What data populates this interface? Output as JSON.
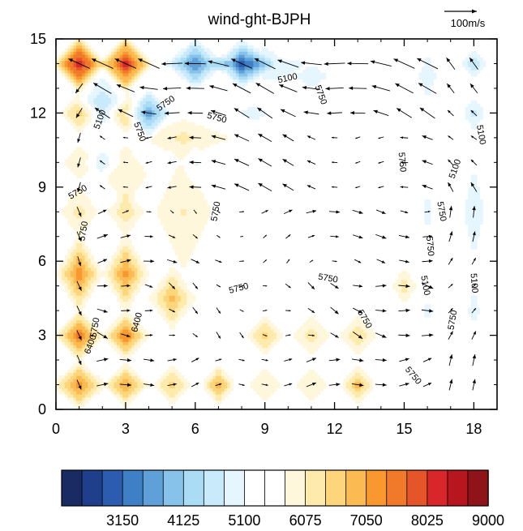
{
  "chart_data": {
    "type": "heatmap",
    "title": "wind-ght-BJPH",
    "xlabel": "",
    "ylabel": "",
    "xlim": [
      0,
      19
    ],
    "ylim": [
      0,
      15
    ],
    "xticks": [
      0,
      3,
      6,
      9,
      12,
      15,
      18
    ],
    "yticks": [
      0,
      3,
      6,
      9,
      12,
      15
    ],
    "reference_vector": {
      "label": "100m/s"
    },
    "colorbar": {
      "colors": [
        "#1a2b64",
        "#1f3f8c",
        "#2b5cb0",
        "#3f7fc6",
        "#5fa0d8",
        "#87c2ea",
        "#aadcf6",
        "#c8eafb",
        "#e6f6fe",
        "#ffffff",
        "#ffffff",
        "#fff7dc",
        "#feeaaa",
        "#fdd57a",
        "#fbbb52",
        "#f8982f",
        "#f07a2a",
        "#e6542a",
        "#d8262a",
        "#b8161f",
        "#8f141a"
      ],
      "labels": [
        "3150",
        "4125",
        "5100",
        "6075",
        "7050",
        "8025",
        "9000"
      ]
    },
    "contour_labels": [
      {
        "text": "5100",
        "x": 10,
        "y": 13.3
      },
      {
        "text": "5750",
        "x": 11.3,
        "y": 12.7
      },
      {
        "text": "5750",
        "x": 4.8,
        "y": 12.3
      },
      {
        "text": "5750",
        "x": 6.9,
        "y": 11.7
      },
      {
        "text": "5100",
        "x": 2.0,
        "y": 11.7
      },
      {
        "text": "5750",
        "x": 3.5,
        "y": 11.2
      },
      {
        "text": "5100",
        "x": 18.2,
        "y": 11.1
      },
      {
        "text": "5750",
        "x": 14.8,
        "y": 10.0
      },
      {
        "text": "5100",
        "x": 17.3,
        "y": 9.7
      },
      {
        "text": "5750",
        "x": 1.0,
        "y": 8.7
      },
      {
        "text": "5750",
        "x": 7.0,
        "y": 8.0
      },
      {
        "text": "5750",
        "x": 16.5,
        "y": 8.0
      },
      {
        "text": "5750",
        "x": 1.3,
        "y": 7.2
      },
      {
        "text": "5750",
        "x": 16.0,
        "y": 6.6
      },
      {
        "text": "5750",
        "x": 11.7,
        "y": 5.2
      },
      {
        "text": "5750",
        "x": 7.9,
        "y": 4.8
      },
      {
        "text": "5100",
        "x": 15.8,
        "y": 5.0
      },
      {
        "text": "5100",
        "x": 17.9,
        "y": 5.1
      },
      {
        "text": "6400",
        "x": 3.6,
        "y": 3.5
      },
      {
        "text": "5750",
        "x": 13.2,
        "y": 3.6
      },
      {
        "text": "5750",
        "x": 17.2,
        "y": 3.6
      },
      {
        "text": "5750",
        "x": 1.8,
        "y": 3.3
      },
      {
        "text": "6400",
        "x": 1.6,
        "y": 2.6
      },
      {
        "text": "5750",
        "x": 15.3,
        "y": 1.3
      }
    ],
    "blobs": [
      {
        "x": 1,
        "y": 14,
        "v": 9.0,
        "sx": 0.8,
        "sy": 0.8
      },
      {
        "x": 3,
        "y": 14,
        "v": 8.5,
        "sx": 0.8,
        "sy": 0.8
      },
      {
        "x": 6,
        "y": 14,
        "v": -7.0,
        "sx": 1.0,
        "sy": 0.8
      },
      {
        "x": 8,
        "y": 14,
        "v": -7.0,
        "sx": 0.9,
        "sy": 0.8
      },
      {
        "x": 9,
        "y": 14,
        "v": -3.0,
        "sx": 1.2,
        "sy": 0.8
      },
      {
        "x": 11,
        "y": 13.5,
        "v": -2.0,
        "sx": 1.4,
        "sy": 1.0
      },
      {
        "x": 4,
        "y": 12,
        "v": -6.0,
        "sx": 0.8,
        "sy": 0.8
      },
      {
        "x": 2,
        "y": 12.5,
        "v": -3.5,
        "sx": 0.8,
        "sy": 1.0
      },
      {
        "x": 1,
        "y": 12,
        "v": 3.0,
        "sx": 0.6,
        "sy": 0.6
      },
      {
        "x": 3,
        "y": 12,
        "v": 3.0,
        "sx": 0.6,
        "sy": 0.6
      },
      {
        "x": 5.5,
        "y": 11,
        "v": 1.8,
        "sx": 1.6,
        "sy": 0.6
      },
      {
        "x": 8.5,
        "y": 12,
        "v": -2.0,
        "sx": 1.4,
        "sy": 0.7
      },
      {
        "x": 2,
        "y": 10,
        "v": -2.5,
        "sx": 0.6,
        "sy": 0.6
      },
      {
        "x": 1,
        "y": 10,
        "v": 1.5,
        "sx": 0.6,
        "sy": 0.6
      },
      {
        "x": 3,
        "y": 9.5,
        "v": 1.5,
        "sx": 0.8,
        "sy": 1.0
      },
      {
        "x": 5.5,
        "y": 8,
        "v": 1.5,
        "sx": 1.0,
        "sy": 2.0
      },
      {
        "x": 7,
        "y": 9.5,
        "v": -1.5,
        "sx": 1.2,
        "sy": 0.8
      },
      {
        "x": 10,
        "y": 10,
        "v": -1.2,
        "sx": 0.8,
        "sy": 0.8
      },
      {
        "x": 1,
        "y": 8,
        "v": 2.0,
        "sx": 0.6,
        "sy": 0.8
      },
      {
        "x": 3,
        "y": 8,
        "v": 2.5,
        "sx": 0.6,
        "sy": 0.7
      },
      {
        "x": 1,
        "y": 5.5,
        "v": 5.5,
        "sx": 0.7,
        "sy": 1.1
      },
      {
        "x": 3,
        "y": 5.5,
        "v": 5.0,
        "sx": 0.7,
        "sy": 1.1
      },
      {
        "x": 5,
        "y": 4.5,
        "v": 4.0,
        "sx": 0.7,
        "sy": 0.9
      },
      {
        "x": 1,
        "y": 3,
        "v": 6.5,
        "sx": 0.7,
        "sy": 0.7
      },
      {
        "x": 3,
        "y": 3,
        "v": 6.0,
        "sx": 0.7,
        "sy": 0.7
      },
      {
        "x": 1,
        "y": 1,
        "v": 5.5,
        "sx": 0.8,
        "sy": 0.7
      },
      {
        "x": 3,
        "y": 1,
        "v": 5.0,
        "sx": 0.7,
        "sy": 0.6
      },
      {
        "x": 5,
        "y": 1,
        "v": 3.0,
        "sx": 0.6,
        "sy": 0.6
      },
      {
        "x": 7,
        "y": 1,
        "v": 4.5,
        "sx": 0.5,
        "sy": 0.6
      },
      {
        "x": 9,
        "y": 3,
        "v": 3.0,
        "sx": 0.6,
        "sy": 0.6
      },
      {
        "x": 11,
        "y": 3,
        "v": 2.0,
        "sx": 0.6,
        "sy": 0.6
      },
      {
        "x": 13,
        "y": 3,
        "v": 2.5,
        "sx": 0.6,
        "sy": 0.6
      },
      {
        "x": 13,
        "y": 1,
        "v": 4.0,
        "sx": 0.5,
        "sy": 0.6
      },
      {
        "x": 11,
        "y": 1,
        "v": 1.5,
        "sx": 0.6,
        "sy": 0.6
      },
      {
        "x": 9,
        "y": 1,
        "v": 1.5,
        "sx": 0.6,
        "sy": 0.6
      },
      {
        "x": 15,
        "y": 5,
        "v": 2.0,
        "sx": 0.4,
        "sy": 0.6
      },
      {
        "x": 16,
        "y": 8,
        "v": -1.8,
        "sx": 0.5,
        "sy": 2.2
      },
      {
        "x": 16,
        "y": 4,
        "v": -1.8,
        "sx": 0.5,
        "sy": 1.0
      },
      {
        "x": 16,
        "y": 13.5,
        "v": -2.5,
        "sx": 0.5,
        "sy": 1.2
      },
      {
        "x": 18,
        "y": 14,
        "v": -3.5,
        "sx": 0.6,
        "sy": 0.6
      },
      {
        "x": 18,
        "y": 12,
        "v": -2.8,
        "sx": 0.6,
        "sy": 0.8
      },
      {
        "x": 18,
        "y": 8,
        "v": -2.5,
        "sx": 0.6,
        "sy": 2.5
      },
      {
        "x": 18,
        "y": 4,
        "v": -2.0,
        "sx": 0.5,
        "sy": 1.2
      },
      {
        "x": 14.5,
        "y": 9,
        "v": -1.5,
        "sx": 0.5,
        "sy": 1.5
      },
      {
        "x": 14.5,
        "y": 2.5,
        "v": -1.2,
        "sx": 0.5,
        "sy": 1.0
      },
      {
        "x": 6,
        "y": 10,
        "v": -1.5,
        "sx": 0.5,
        "sy": 0.5
      },
      {
        "x": 8,
        "y": 8.5,
        "v": -1.0,
        "sx": 0.9,
        "sy": 0.9
      }
    ]
  }
}
